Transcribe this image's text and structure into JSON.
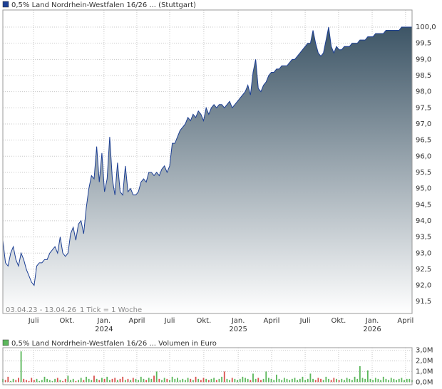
{
  "chart_data": [
    {
      "type": "area",
      "title": "0,5% Land Nordrhein-Westfalen 16/26 ... (Stuttgart)",
      "subtitle": "03.04.23 - 13.04.26",
      "note": "1 Tick = 1 Woche",
      "legend_color": "#1c3f94",
      "color": "#1c3f94",
      "fill_color": "#3d5566",
      "x": [
        0,
        1,
        2,
        3,
        4,
        5,
        6,
        7,
        8,
        9,
        10,
        11,
        12,
        13,
        14,
        15,
        16,
        17,
        18,
        19,
        20,
        21,
        22,
        23,
        24,
        25,
        26,
        27,
        28,
        29,
        30,
        31,
        32,
        33,
        34,
        35,
        36,
        37,
        38,
        39,
        40,
        41,
        42,
        43,
        44,
        45,
        46,
        47,
        48,
        49,
        50,
        51,
        52,
        53,
        54,
        55,
        56,
        57,
        58,
        59,
        60,
        61,
        62,
        63,
        64,
        65,
        66,
        67,
        68,
        69,
        70,
        71,
        72,
        73,
        74,
        75,
        76,
        77,
        78,
        79,
        80,
        81,
        82,
        83,
        84,
        85,
        86,
        87,
        88,
        89,
        90,
        91,
        92,
        93,
        94,
        95,
        96,
        97,
        98,
        99,
        100,
        101,
        102,
        103,
        104,
        105,
        106,
        107,
        108,
        109,
        110,
        111,
        112,
        113,
        114,
        115,
        116,
        117,
        118,
        119,
        120,
        121,
        122,
        123,
        124,
        125,
        126,
        127,
        128,
        129,
        130,
        131,
        132,
        133,
        134,
        135,
        136,
        137,
        138,
        139,
        140,
        141,
        142,
        143,
        144,
        145,
        146,
        147,
        148,
        149,
        150,
        151,
        152,
        153,
        154,
        155,
        156,
        157
      ],
      "values": [
        93.4,
        92.7,
        92.6,
        93.0,
        93.2,
        92.8,
        92.6,
        93.0,
        92.8,
        92.5,
        92.3,
        92.1,
        92.0,
        92.6,
        92.7,
        92.7,
        92.8,
        92.8,
        93.0,
        93.1,
        93.2,
        93.0,
        93.5,
        93.0,
        92.9,
        93.0,
        93.6,
        93.8,
        93.4,
        93.9,
        94.0,
        93.6,
        94.4,
        95.0,
        95.4,
        95.3,
        96.3,
        95.2,
        96.1,
        94.9,
        95.3,
        96.6,
        95.3,
        94.8,
        95.8,
        94.9,
        94.8,
        95.7,
        94.9,
        95.0,
        94.8,
        94.8,
        94.9,
        95.2,
        95.3,
        95.2,
        95.5,
        95.5,
        95.4,
        95.5,
        95.4,
        95.6,
        95.7,
        95.5,
        95.7,
        96.4,
        96.4,
        96.6,
        96.8,
        96.9,
        97.0,
        97.2,
        97.1,
        97.3,
        97.2,
        97.4,
        97.3,
        97.1,
        97.5,
        97.3,
        97.5,
        97.6,
        97.5,
        97.6,
        97.6,
        97.5,
        97.6,
        97.7,
        97.5,
        97.6,
        97.7,
        97.8,
        97.9,
        98.0,
        98.2,
        97.9,
        98.6,
        99.0,
        98.1,
        98.0,
        98.2,
        98.3,
        98.5,
        98.6,
        98.6,
        98.7,
        98.7,
        98.8,
        98.8,
        98.8,
        98.9,
        99.0,
        99.0,
        99.1,
        99.2,
        99.3,
        99.4,
        99.5,
        99.5,
        99.9,
        99.5,
        99.2,
        99.1,
        99.2,
        99.6,
        100.0,
        99.4,
        99.2,
        99.4,
        99.3,
        99.3,
        99.4,
        99.4,
        99.4,
        99.5,
        99.5,
        99.5,
        99.6,
        99.6,
        99.6,
        99.7,
        99.7,
        99.7,
        99.8,
        99.8,
        99.8,
        99.8,
        99.9,
        99.9,
        99.9,
        99.9,
        99.9,
        99.9,
        100.0,
        100.0,
        100.0,
        100.0,
        100.0
      ],
      "xlim": [
        0,
        157
      ],
      "xticks": [
        {
          "value": 11.8,
          "label": "Juli"
        },
        {
          "value": 24.6,
          "label": "Okt."
        },
        {
          "value": 38.8,
          "label": "Jan."
        },
        {
          "value": 51.4,
          "label": "April"
        },
        {
          "value": 64,
          "label": "Juli"
        },
        {
          "value": 77.1,
          "label": "Okt."
        },
        {
          "value": 90.3,
          "label": "Jan."
        },
        {
          "value": 103.1,
          "label": "April"
        },
        {
          "value": 116,
          "label": "Juli"
        },
        {
          "value": 128.8,
          "label": "Okt."
        },
        {
          "value": 141.7,
          "label": "Jan."
        },
        {
          "value": 154.5,
          "label": "April"
        }
      ],
      "xtick_years": [
        {
          "value": 38.8,
          "label": "2024"
        },
        {
          "value": 90.3,
          "label": "2025"
        },
        {
          "value": 141.7,
          "label": "2026"
        }
      ],
      "ylim": [
        91.13,
        100.53
      ],
      "yticks": [
        {
          "value": 91.5,
          "label": "91,5"
        },
        {
          "value": 92,
          "label": "92,0"
        },
        {
          "value": 92.5,
          "label": "92,5"
        },
        {
          "value": 93,
          "label": "93,0"
        },
        {
          "value": 93.5,
          "label": "93,5"
        },
        {
          "value": 94,
          "label": "94,0"
        },
        {
          "value": 94.5,
          "label": "94,5"
        },
        {
          "value": 95,
          "label": "95,0"
        },
        {
          "value": 95.5,
          "label": "95,5"
        },
        {
          "value": 96,
          "label": "96,0"
        },
        {
          "value": 96.5,
          "label": "96,5"
        },
        {
          "value": 97,
          "label": "97,0"
        },
        {
          "value": 97.5,
          "label": "97,5"
        },
        {
          "value": 98,
          "label": "98,0"
        },
        {
          "value": 98.5,
          "label": "98,5"
        },
        {
          "value": 99,
          "label": "99,0"
        },
        {
          "value": 99.5,
          "label": "99,5"
        },
        {
          "value": 100,
          "label": "100,0"
        }
      ],
      "grid": true
    },
    {
      "type": "bar",
      "title": "0,5% Land Nordrhein-Westfalen 16/26 ... Volumen in Euro",
      "legend_color": "#5cb85c",
      "up_color": "#5cb85c",
      "down_color": "#d9534f",
      "values": [
        300000,
        200000,
        500000,
        100000,
        300000,
        200000,
        400000,
        2900000,
        300000,
        200000,
        100000,
        400000,
        200000,
        300000,
        100000,
        200000,
        500000,
        300000,
        200000,
        100000,
        300000,
        400000,
        200000,
        100000,
        300000,
        600000,
        200000,
        300000,
        100000,
        200000,
        400000,
        200000,
        500000,
        300000,
        200000,
        600000,
        300000,
        200000,
        400000,
        300000,
        500000,
        200000,
        300000,
        400000,
        200000,
        300000,
        500000,
        200000,
        300000,
        200000,
        400000,
        300000,
        200000,
        500000,
        300000,
        200000,
        400000,
        300000,
        600000,
        1000000,
        300000,
        200000,
        400000,
        300000,
        200000,
        500000,
        300000,
        400000,
        200000,
        300000,
        200000,
        400000,
        300000,
        200000,
        500000,
        300000,
        200000,
        400000,
        300000,
        200000,
        300000,
        400000,
        200000,
        300000,
        500000,
        1000000,
        300000,
        200000,
        400000,
        300000,
        200000,
        300000,
        500000,
        400000,
        300000,
        200000,
        800000,
        300000,
        400000,
        200000,
        300000,
        1000000,
        400000,
        300000,
        200000,
        700000,
        300000,
        200000,
        400000,
        300000,
        200000,
        300000,
        400000,
        200000,
        300000,
        500000,
        200000,
        300000,
        800000,
        300000,
        200000,
        400000,
        300000,
        200000,
        500000,
        300000,
        200000,
        400000,
        300000,
        200000,
        300000,
        200000,
        400000,
        300000,
        200000,
        500000,
        300000,
        1500000,
        400000,
        300000,
        1100000,
        300000,
        200000,
        400000,
        300000,
        200000,
        500000,
        300000,
        200000,
        400000,
        300000,
        200000,
        300000,
        400000,
        200000,
        300000,
        300000,
        200000
      ],
      "ylim": [
        -250000,
        3250000
      ],
      "yticks": [
        {
          "value": 0,
          "label": "0,0M"
        },
        {
          "value": 1000000,
          "label": "1,0M"
        },
        {
          "value": 2000000,
          "label": "2,0M"
        },
        {
          "value": 3000000,
          "label": "3,0M"
        }
      ],
      "grid": true
    }
  ]
}
